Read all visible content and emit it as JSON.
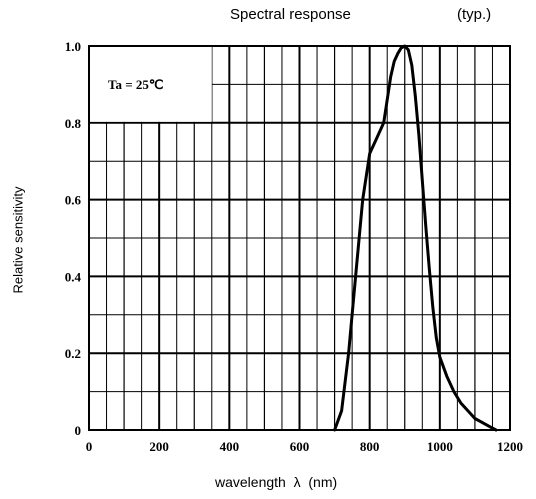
{
  "chart_data": {
    "type": "line",
    "title": "Spectral response",
    "subtitle": "(typ.)",
    "xlabel": "wavelength  λ  (nm)",
    "ylabel": "Relative sensitivity",
    "annotation": "Ta = 25℃",
    "xlim": [
      0,
      1200
    ],
    "ylim": [
      0,
      1.0
    ],
    "x_ticks": [
      0,
      200,
      400,
      600,
      800,
      1000,
      1200
    ],
    "x_tick_labels": [
      "0",
      "200",
      "400",
      "600",
      "800",
      "1000",
      "1200"
    ],
    "y_ticks": [
      0,
      0.2,
      0.4,
      0.6,
      0.8,
      1.0
    ],
    "y_tick_labels": [
      "0",
      "0.2",
      "0.4",
      "0.6",
      "0.8",
      "1.0"
    ],
    "grid": true,
    "series": [
      {
        "x": [
          700,
          720,
          740,
          760,
          780,
          800,
          820,
          840,
          850,
          860,
          870,
          880,
          890,
          900,
          910,
          920,
          930,
          940,
          950,
          960,
          970,
          980,
          990,
          1000,
          1020,
          1040,
          1060,
          1080,
          1100,
          1120,
          1140,
          1160
        ],
        "values": [
          0.0,
          0.05,
          0.2,
          0.4,
          0.6,
          0.72,
          0.76,
          0.8,
          0.86,
          0.92,
          0.96,
          0.98,
          0.995,
          1.0,
          0.99,
          0.95,
          0.87,
          0.77,
          0.65,
          0.53,
          0.42,
          0.32,
          0.24,
          0.19,
          0.14,
          0.1,
          0.07,
          0.05,
          0.03,
          0.02,
          0.01,
          0.0
        ]
      }
    ]
  }
}
